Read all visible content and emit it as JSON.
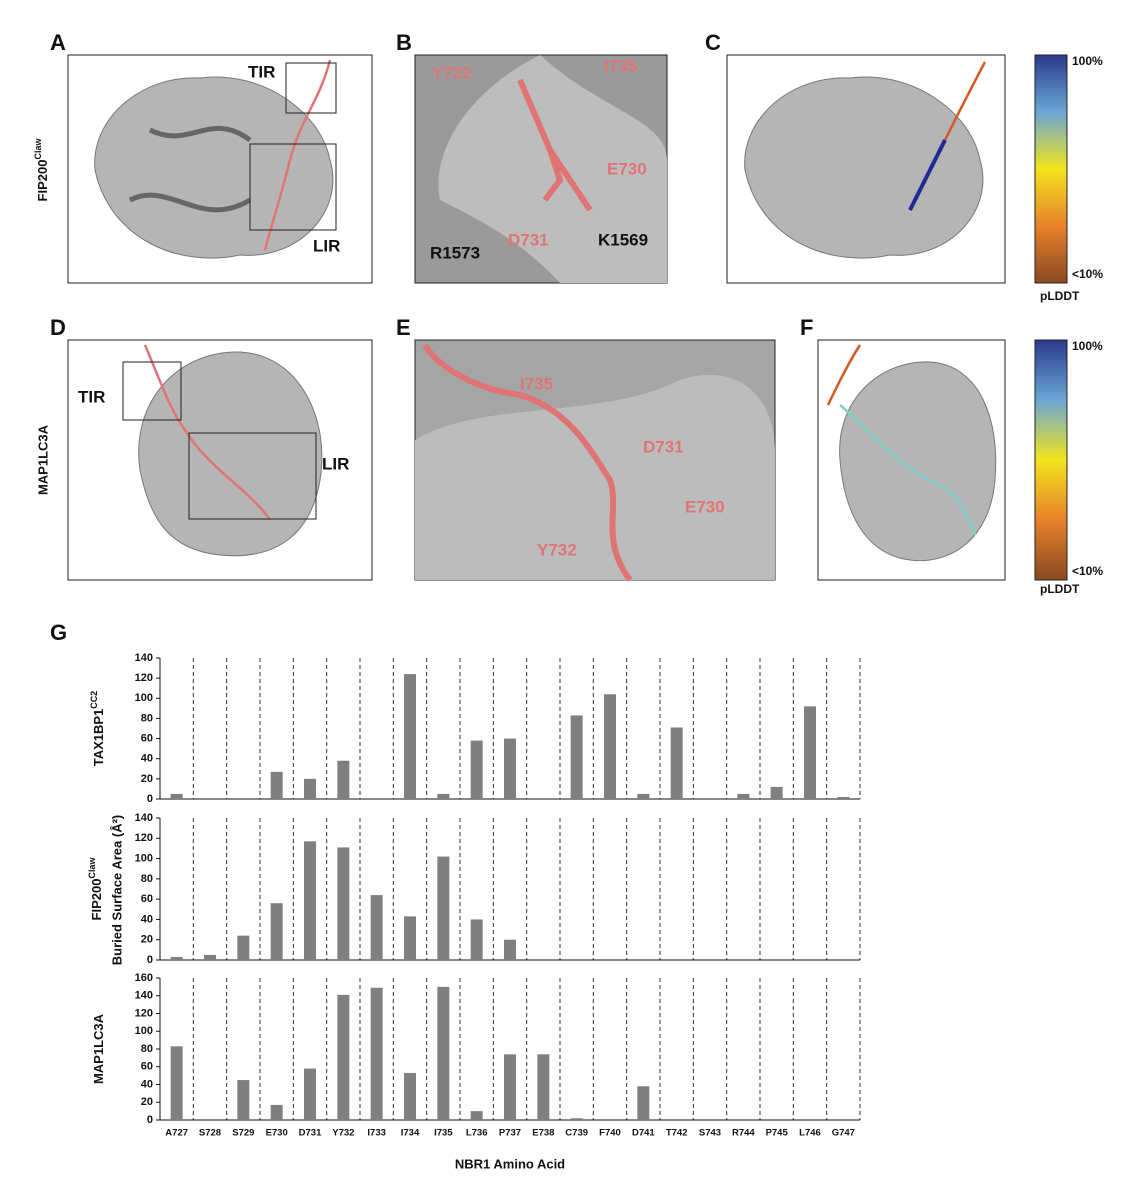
{
  "panels": [
    {
      "label": "A",
      "texts": [
        "TIR",
        "LIR"
      ],
      "row_label": "FIP200",
      "row_label_sup": "Claw"
    },
    {
      "label": "B",
      "texts": [
        "Y732",
        "I735",
        "E730",
        "D731",
        "R1573",
        "K1569"
      ]
    },
    {
      "label": "C",
      "colorbar": [
        "100%",
        "<10%"
      ],
      "colorbar_title": "pLDDT"
    },
    {
      "label": "D",
      "texts": [
        "TIR",
        "LIR"
      ],
      "row_label": "MAP1LC3A"
    },
    {
      "label": "E",
      "texts": [
        "I735",
        "D731",
        "E730",
        "Y732"
      ]
    },
    {
      "label": "F",
      "colorbar": [
        "100%",
        "<10%"
      ],
      "colorbar_title": "pLDDT"
    }
  ],
  "panel_g": {
    "label": "G",
    "ylabel": "Buried Surface Area (Å²)",
    "xlabel": "NBR1 Amino Acid"
  },
  "chart_data": [
    {
      "type": "bar",
      "ylabel": "TAX1BP1",
      "ylabel_sup": "CC2",
      "color": "#7f7f7f",
      "values": [
        5,
        0,
        0,
        27,
        20,
        38,
        0,
        124,
        5,
        58,
        60,
        0,
        83,
        104,
        5,
        71,
        0,
        5,
        12,
        92,
        2
      ],
      "ylim": [
        0,
        140
      ],
      "yticks": [
        0,
        20,
        40,
        60,
        80,
        100,
        120,
        140
      ]
    },
    {
      "type": "bar",
      "ylabel": "FIP200",
      "ylabel_sup": "Claw",
      "color": "#7f7f7f",
      "values": [
        3,
        5,
        24,
        56,
        117,
        111,
        64,
        43,
        102,
        40,
        20,
        0,
        0,
        0,
        0,
        0,
        0,
        0,
        0,
        0,
        0
      ],
      "ylim": [
        0,
        140
      ],
      "yticks": [
        0,
        20,
        40,
        60,
        80,
        100,
        120,
        140
      ]
    },
    {
      "type": "bar",
      "ylabel": "MAP1LC3A",
      "color": "#7f7f7f",
      "categories": [
        "A727",
        "S728",
        "S729",
        "E730",
        "D731",
        "Y732",
        "I733",
        "I734",
        "I735",
        "L736",
        "P737",
        "E738",
        "C739",
        "F740",
        "D741",
        "T742",
        "S743",
        "R744",
        "P745",
        "L746",
        "G747"
      ],
      "values": [
        83,
        0,
        45,
        17,
        58,
        141,
        149,
        53,
        150,
        10,
        74,
        74,
        2,
        0,
        38,
        0,
        0,
        0,
        0,
        0,
        0
      ],
      "ylim": [
        0,
        160
      ],
      "yticks": [
        0,
        20,
        40,
        60,
        80,
        100,
        120,
        140,
        160
      ]
    }
  ]
}
